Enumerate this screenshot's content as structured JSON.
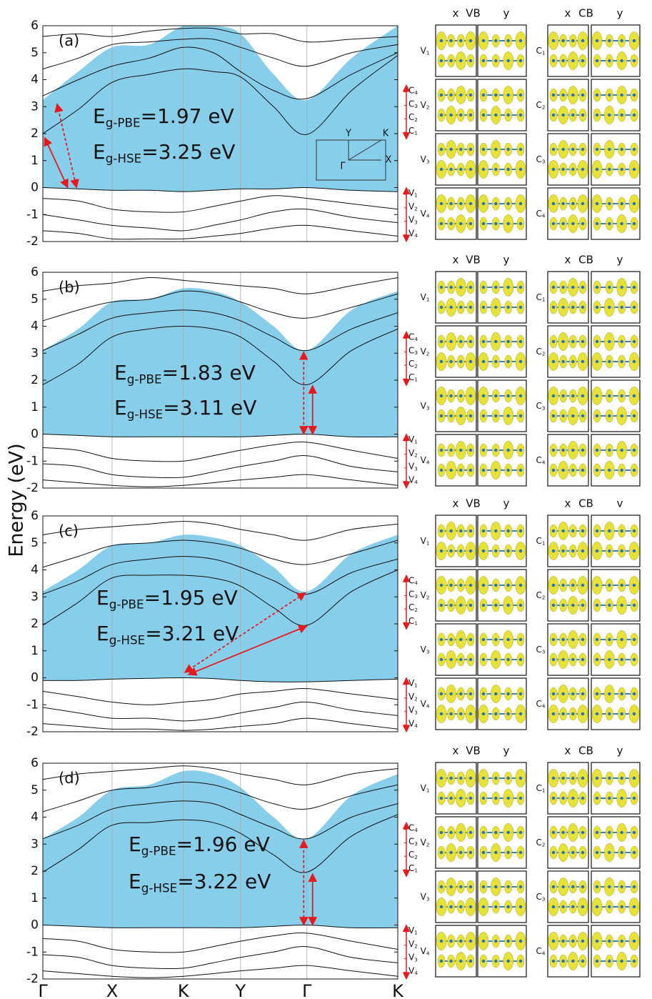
{
  "figure": {
    "ylabel": "Energy (eV)"
  },
  "chart_data": [
    {
      "type": "band",
      "panel_label": "(a)",
      "xlim": [
        0,
        1
      ],
      "ylim": [
        -2,
        6
      ],
      "yticks": [
        -2,
        -1,
        0,
        1,
        2,
        3,
        4,
        5,
        6
      ],
      "xgrid": [
        0,
        0.195,
        0.396,
        0.557,
        0.744,
        1
      ],
      "x": [
        0,
        0.1,
        0.195,
        0.3,
        0.396,
        0.48,
        0.557,
        0.65,
        0.744,
        0.87,
        1
      ],
      "area_color": "#87ceeb",
      "band_color": "#111111",
      "arrow_color": "#e8191c",
      "area": {
        "upper": [
          3.25,
          4.3,
          5.2,
          5.3,
          6.0,
          6.0,
          5.7,
          4.2,
          3.25,
          4.8,
          6.0
        ],
        "lower": [
          0,
          -0.05,
          -0.1,
          -0.1,
          -0.15,
          -0.1,
          -0.05,
          -0.05,
          0,
          -0.1,
          -0.15
        ]
      },
      "bands": [
        [
          2.0,
          2.9,
          3.9,
          4.2,
          4.4,
          4.3,
          4.1,
          3.0,
          1.97,
          3.6,
          4.9
        ],
        [
          3.4,
          4.0,
          4.5,
          4.8,
          5.2,
          5.0,
          4.3,
          3.6,
          3.3,
          4.2,
          5.0
        ],
        [
          4.4,
          4.8,
          5.3,
          5.4,
          5.5,
          5.5,
          5.2,
          4.8,
          4.5,
          5.0,
          5.3
        ],
        [
          5.6,
          5.7,
          5.6,
          5.8,
          5.9,
          5.9,
          5.7,
          5.7,
          5.4,
          5.5,
          5.6
        ],
        [
          0,
          -0.05,
          -0.1,
          -0.1,
          -0.15,
          -0.1,
          -0.05,
          -0.05,
          0,
          -0.1,
          -0.15
        ],
        [
          -0.4,
          -0.5,
          -0.8,
          -0.9,
          -0.9,
          -0.7,
          -0.5,
          -0.3,
          -0.4,
          -0.6,
          -0.8
        ],
        [
          -1.0,
          -1.2,
          -1.4,
          -1.5,
          -1.6,
          -1.4,
          -1.2,
          -0.9,
          -0.8,
          -1.1,
          -1.3
        ],
        [
          -1.6,
          -1.7,
          -1.9,
          -1.9,
          -1.9,
          -1.8,
          -1.7,
          -1.5,
          -1.4,
          -1.6,
          -1.8
        ]
      ],
      "gap_labels": [
        {
          "symbol": "E",
          "sub": "g-PBE",
          "text": "=1.97 eV"
        },
        {
          "symbol": "E",
          "sub": "g-HSE",
          "text": "=3.25 eV"
        }
      ],
      "arrows": [
        {
          "from": [
            0.005,
            1.85
          ],
          "to": [
            0.07,
            0.0
          ],
          "dashed": false
        },
        {
          "from": [
            0.04,
            3.1
          ],
          "to": [
            0.095,
            0.0
          ],
          "dashed": true
        }
      ],
      "c_range": [
        3.8,
        1.8
      ],
      "v_range": [
        0,
        -2
      ],
      "v_states": [
        [
          "V",
          "1"
        ],
        [
          "V",
          "2"
        ],
        [
          "V",
          "3"
        ],
        [
          "V",
          "4"
        ]
      ],
      "c_states": [
        [
          "C",
          "1"
        ],
        [
          "C",
          "2"
        ],
        [
          "C",
          "3"
        ],
        [
          "C",
          "4"
        ]
      ],
      "vb_header": [
        "x",
        "VB",
        "y"
      ],
      "cb_header": [
        "x",
        "CB",
        "y"
      ],
      "inset_labels": [
        "Y",
        "K",
        "Γ",
        "X"
      ]
    },
    {
      "type": "band",
      "panel_label": "(b)",
      "xlim": [
        0,
        1
      ],
      "ylim": [
        -2,
        6
      ],
      "yticks": [
        -2,
        -1,
        0,
        1,
        2,
        3,
        4,
        5,
        6
      ],
      "xgrid": [
        0,
        0.195,
        0.396,
        0.557,
        0.744,
        1
      ],
      "x": [
        0,
        0.1,
        0.195,
        0.3,
        0.396,
        0.48,
        0.557,
        0.65,
        0.744,
        0.87,
        1
      ],
      "area_color": "#87ceeb",
      "band_color": "#111111",
      "arrow_color": "#e8191c",
      "area": {
        "upper": [
          3.1,
          3.9,
          4.9,
          5.0,
          5.4,
          5.3,
          4.9,
          4.0,
          3.1,
          4.6,
          5.3
        ],
        "lower": [
          0,
          -0.05,
          -0.1,
          -0.1,
          -0.1,
          -0.1,
          -0.1,
          -0.05,
          0,
          -0.1,
          -0.1
        ]
      },
      "bands": [
        [
          1.83,
          2.6,
          3.6,
          3.9,
          4.0,
          3.9,
          3.6,
          2.7,
          1.83,
          3.1,
          3.9
        ],
        [
          3.1,
          3.7,
          4.3,
          4.5,
          4.6,
          4.5,
          4.2,
          3.6,
          3.1,
          3.9,
          4.5
        ],
        [
          4.2,
          4.6,
          4.9,
          5.0,
          5.3,
          5.2,
          4.9,
          4.5,
          4.3,
          4.7,
          5.2
        ],
        [
          5.3,
          5.5,
          5.6,
          5.8,
          5.7,
          5.6,
          5.5,
          5.4,
          5.2,
          5.5,
          5.8
        ],
        [
          0,
          -0.05,
          -0.1,
          -0.1,
          -0.1,
          -0.1,
          -0.1,
          -0.05,
          0,
          -0.1,
          -0.1
        ],
        [
          -0.5,
          -0.6,
          -0.9,
          -1.0,
          -1.0,
          -0.8,
          -0.6,
          -0.4,
          -0.3,
          -0.6,
          -0.9
        ],
        [
          -1.1,
          -1.2,
          -1.5,
          -1.6,
          -1.6,
          -1.4,
          -1.2,
          -1.0,
          -0.8,
          -1.2,
          -1.4
        ],
        [
          -1.7,
          -1.8,
          -1.9,
          -1.95,
          -1.9,
          -1.8,
          -1.7,
          -1.6,
          -1.5,
          -1.7,
          -1.9
        ]
      ],
      "gap_labels": [
        {
          "symbol": "E",
          "sub": "g-PBE",
          "text": "=1.83 eV"
        },
        {
          "symbol": "E",
          "sub": "g-HSE",
          "text": "=3.11 eV"
        }
      ],
      "arrows": [
        {
          "from": [
            0.735,
            3.05
          ],
          "to": [
            0.735,
            0.0
          ],
          "dashed": true
        },
        {
          "from": [
            0.76,
            1.8
          ],
          "to": [
            0.76,
            0.0
          ],
          "dashed": false
        }
      ],
      "c_range": [
        3.8,
        1.8
      ],
      "v_range": [
        0,
        -2
      ],
      "v_states": [
        [
          "V",
          "1"
        ],
        [
          "V",
          "2"
        ],
        [
          "V",
          "3"
        ],
        [
          "V",
          "4"
        ]
      ],
      "c_states": [
        [
          "C",
          "1"
        ],
        [
          "C",
          "2"
        ],
        [
          "C",
          "3"
        ],
        [
          "C",
          "4"
        ]
      ],
      "vb_header": [
        "x",
        "VB",
        "y"
      ],
      "cb_header": [
        "x",
        "CB",
        "y"
      ]
    },
    {
      "type": "band",
      "panel_label": "(c)",
      "xlim": [
        0,
        1
      ],
      "ylim": [
        -2,
        6
      ],
      "yticks": [
        -2,
        -1,
        0,
        1,
        2,
        3,
        4,
        5,
        6
      ],
      "xgrid": [
        0,
        0.195,
        0.396,
        0.557,
        0.744,
        1
      ],
      "x": [
        0,
        0.1,
        0.195,
        0.3,
        0.396,
        0.48,
        0.557,
        0.65,
        0.744,
        0.87,
        1
      ],
      "area_color": "#87ceeb",
      "band_color": "#111111",
      "arrow_color": "#e8191c",
      "area": {
        "upper": [
          3.2,
          4.0,
          4.9,
          5.0,
          5.3,
          5.2,
          4.9,
          4.1,
          3.2,
          4.6,
          5.3
        ],
        "lower": [
          -0.1,
          -0.1,
          -0.05,
          -0.02,
          0,
          -0.03,
          -0.1,
          -0.15,
          -0.15,
          -0.1,
          -0.05
        ]
      },
      "bands": [
        [
          1.95,
          2.8,
          3.7,
          3.8,
          3.8,
          3.7,
          3.4,
          2.6,
          1.95,
          3.2,
          4.0
        ],
        [
          3.1,
          3.6,
          4.2,
          4.4,
          4.5,
          4.4,
          4.1,
          3.6,
          3.1,
          3.9,
          4.4
        ],
        [
          4.1,
          4.5,
          4.9,
          5.0,
          5.1,
          5.0,
          4.8,
          4.4,
          4.2,
          4.6,
          5.1
        ],
        [
          5.3,
          5.5,
          5.6,
          5.7,
          5.8,
          5.7,
          5.5,
          5.3,
          5.1,
          5.5,
          5.7
        ],
        [
          -0.1,
          -0.1,
          -0.05,
          -0.02,
          0,
          -0.03,
          -0.1,
          -0.15,
          -0.15,
          -0.1,
          -0.05
        ],
        [
          -0.5,
          -0.7,
          -0.9,
          -1.0,
          -0.9,
          -0.8,
          -0.6,
          -0.5,
          -0.4,
          -0.6,
          -0.8
        ],
        [
          -1.1,
          -1.3,
          -1.5,
          -1.5,
          -1.6,
          -1.5,
          -1.3,
          -1.1,
          -0.9,
          -1.2,
          -1.4
        ],
        [
          -1.7,
          -1.8,
          -1.9,
          -1.9,
          -1.95,
          -1.9,
          -1.8,
          -1.7,
          -1.5,
          -1.7,
          -1.9
        ]
      ],
      "gap_labels": [
        {
          "symbol": "E",
          "sub": "g-PBE",
          "text": "=1.95 eV"
        },
        {
          "symbol": "E",
          "sub": "g-HSE",
          "text": "=3.21 eV"
        }
      ],
      "arrows": [
        {
          "from": [
            0.41,
            0.12
          ],
          "to": [
            0.744,
            1.92
          ],
          "dashed": false
        },
        {
          "from": [
            0.4,
            0.2
          ],
          "to": [
            0.74,
            3.15
          ],
          "dashed": true
        }
      ],
      "c_range": [
        3.8,
        1.8
      ],
      "v_range": [
        0,
        -2
      ],
      "v_states": [
        [
          "V",
          "1"
        ],
        [
          "V",
          "2"
        ],
        [
          "V",
          "3"
        ],
        [
          "V",
          "4"
        ]
      ],
      "c_states": [
        [
          "C",
          "1"
        ],
        [
          "C",
          "2"
        ],
        [
          "C",
          "3"
        ],
        [
          "C",
          "4"
        ]
      ],
      "vb_header": [
        "x",
        "VB",
        "y"
      ],
      "cb_header": [
        "x",
        "CB",
        "v"
      ]
    },
    {
      "type": "band",
      "panel_label": "(d)",
      "xlim": [
        0,
        1
      ],
      "ylim": [
        -2,
        6
      ],
      "yticks": [
        -2,
        -1,
        0,
        1,
        2,
        3,
        4,
        5,
        6
      ],
      "xticks": [
        {
          "value": 0,
          "label": "Γ"
        },
        {
          "value": 0.195,
          "label": "X"
        },
        {
          "value": 0.396,
          "label": "K"
        },
        {
          "value": 0.557,
          "label": "Y"
        },
        {
          "value": 0.744,
          "label": "Γ"
        },
        {
          "value": 1,
          "label": "K"
        }
      ],
      "x": [
        0,
        0.1,
        0.195,
        0.3,
        0.396,
        0.48,
        0.557,
        0.65,
        0.744,
        0.87,
        1
      ],
      "area_color": "#87ceeb",
      "band_color": "#111111",
      "arrow_color": "#e8191c",
      "area": {
        "upper": [
          3.2,
          4.0,
          5.0,
          5.2,
          5.7,
          5.6,
          5.1,
          4.0,
          3.2,
          4.8,
          5.6
        ],
        "lower": [
          0,
          -0.05,
          -0.1,
          -0.1,
          -0.1,
          -0.1,
          -0.1,
          -0.05,
          0,
          -0.1,
          -0.1
        ]
      },
      "bands": [
        [
          1.96,
          2.8,
          3.7,
          3.8,
          3.9,
          3.8,
          3.4,
          2.6,
          1.96,
          3.3,
          4.1
        ],
        [
          3.2,
          3.7,
          4.3,
          4.5,
          4.6,
          4.5,
          4.1,
          3.6,
          3.2,
          4.0,
          4.5
        ],
        [
          4.2,
          4.6,
          5.0,
          5.1,
          5.3,
          5.2,
          4.9,
          4.5,
          4.3,
          4.8,
          5.2
        ],
        [
          5.4,
          5.6,
          5.7,
          5.8,
          5.9,
          5.8,
          5.6,
          5.4,
          5.2,
          5.6,
          5.8
        ],
        [
          0,
          -0.05,
          -0.1,
          -0.1,
          -0.1,
          -0.1,
          -0.1,
          -0.05,
          0,
          -0.1,
          -0.1
        ],
        [
          -0.5,
          -0.6,
          -0.9,
          -1.0,
          -1.0,
          -0.8,
          -0.6,
          -0.4,
          -0.3,
          -0.6,
          -0.9
        ],
        [
          -1.1,
          -1.2,
          -1.5,
          -1.6,
          -1.6,
          -1.4,
          -1.2,
          -1.0,
          -0.8,
          -1.2,
          -1.4
        ],
        [
          -1.7,
          -1.8,
          -1.9,
          -1.95,
          -1.9,
          -1.8,
          -1.7,
          -1.6,
          -1.5,
          -1.7,
          -1.9
        ]
      ],
      "gap_labels": [
        {
          "symbol": "E",
          "sub": "g-PBE",
          "text": "=1.96 eV"
        },
        {
          "symbol": "E",
          "sub": "g-HSE",
          "text": "=3.22 eV"
        }
      ],
      "arrows": [
        {
          "from": [
            0.735,
            3.15
          ],
          "to": [
            0.735,
            0.0
          ],
          "dashed": true
        },
        {
          "from": [
            0.76,
            1.9
          ],
          "to": [
            0.76,
            0.0
          ],
          "dashed": false
        }
      ],
      "c_range": [
        3.8,
        1.8
      ],
      "v_range": [
        0,
        -2
      ],
      "v_states": [
        [
          "V",
          "1"
        ],
        [
          "V",
          "2"
        ],
        [
          "V",
          "3"
        ],
        [
          "V",
          "4"
        ]
      ],
      "c_states": [
        [
          "C",
          "1"
        ],
        [
          "C",
          "2"
        ],
        [
          "C",
          "3"
        ],
        [
          "C",
          "4"
        ]
      ],
      "vb_header": [
        "x",
        "VB",
        "y"
      ],
      "cb_header": [
        "x",
        "CB",
        "y"
      ]
    }
  ]
}
